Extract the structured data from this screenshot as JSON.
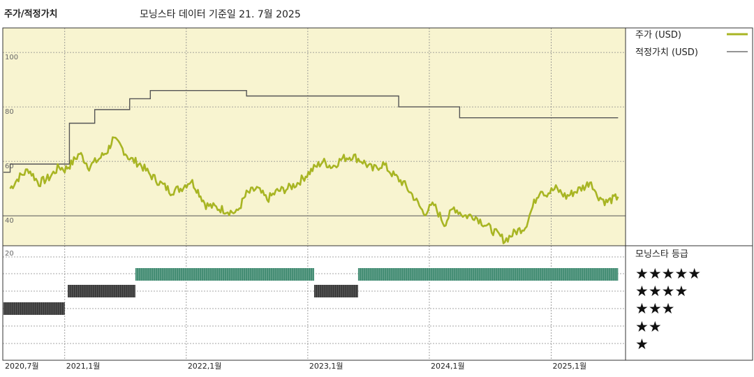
{
  "header": {
    "title": "주가/적정가치",
    "subtitle": "모닝스타 데이터 기준일 21. 7월 2025"
  },
  "legend": {
    "price_label": "주가 (USD)",
    "fair_label": "적정가치 (USD)",
    "rating_title": "모닝스타 등급",
    "stars": [
      "★★★★★",
      "★★★★",
      "★★★",
      "★★",
      "★"
    ]
  },
  "colors": {
    "price": "#a8b523",
    "fair": "#555555",
    "panel_bg": "#f8f4d0",
    "rating_green": "#3f8a70",
    "rating_dark": "#333333"
  },
  "chart_data": [
    {
      "type": "line",
      "title": "주가/적정가치",
      "y_ticks": [
        40,
        60,
        80,
        100
      ],
      "ylim": [
        29,
        109
      ],
      "x_ticks": [
        "2020,7월",
        "2021,1월",
        "2022,1월",
        "2023,1월",
        "2024,1월",
        "2025,1월"
      ],
      "series": [
        {
          "name": "주가 (USD)",
          "points": [
            [
              "2020-07-21",
              50
            ],
            [
              "2020-08-15",
              54
            ],
            [
              "2020-09-15",
              57
            ],
            [
              "2020-10-15",
              52
            ],
            [
              "2020-11-15",
              54
            ],
            [
              "2020-12-15",
              58
            ],
            [
              "2021-01-01",
              57
            ],
            [
              "2021-01-20",
              59
            ],
            [
              "2021-02-15",
              63
            ],
            [
              "2021-03-15",
              58
            ],
            [
              "2021-04-15",
              61
            ],
            [
              "2021-05-10",
              64
            ],
            [
              "2021-05-25",
              68
            ],
            [
              "2021-06-15",
              66
            ],
            [
              "2021-07-15",
              61
            ],
            [
              "2021-08-15",
              59
            ],
            [
              "2021-09-15",
              55
            ],
            [
              "2021-10-15",
              52
            ],
            [
              "2021-11-15",
              49
            ],
            [
              "2021-12-15",
              50
            ],
            [
              "2022-01-15",
              53
            ],
            [
              "2022-02-01",
              50
            ],
            [
              "2022-03-01",
              44
            ],
            [
              "2022-04-01",
              43
            ],
            [
              "2022-05-01",
              42
            ],
            [
              "2022-06-01",
              41
            ],
            [
              "2022-07-01",
              48
            ],
            [
              "2022-08-01",
              50
            ],
            [
              "2022-09-01",
              46
            ],
            [
              "2022-10-01",
              49
            ],
            [
              "2022-11-01",
              50
            ],
            [
              "2022-12-01",
              52
            ],
            [
              "2023-01-15",
              57
            ],
            [
              "2023-02-15",
              60
            ],
            [
              "2023-03-15",
              58
            ],
            [
              "2023-04-15",
              61
            ],
            [
              "2023-05-15",
              62
            ],
            [
              "2023-06-15",
              60
            ],
            [
              "2023-07-15",
              57
            ],
            [
              "2023-08-15",
              59
            ],
            [
              "2023-09-15",
              55
            ],
            [
              "2023-10-15",
              52
            ],
            [
              "2023-11-15",
              47
            ],
            [
              "2023-12-15",
              41
            ],
            [
              "2024-01-15",
              44
            ],
            [
              "2024-02-15",
              37
            ],
            [
              "2024-03-15",
              43
            ],
            [
              "2024-04-15",
              40
            ],
            [
              "2024-05-15",
              40
            ],
            [
              "2024-06-15",
              37
            ],
            [
              "2024-07-15",
              34
            ],
            [
              "2024-08-15",
              31
            ],
            [
              "2024-09-15",
              34
            ],
            [
              "2024-10-15",
              36
            ],
            [
              "2024-11-15",
              46
            ],
            [
              "2024-12-01",
              50
            ],
            [
              "2024-12-15",
              48
            ],
            [
              "2025-01-15",
              50
            ],
            [
              "2025-02-15",
              47
            ],
            [
              "2025-03-15",
              49
            ],
            [
              "2025-04-15",
              51
            ],
            [
              "2025-05-01",
              53
            ],
            [
              "2025-05-15",
              48
            ],
            [
              "2025-06-15",
              45
            ],
            [
              "2025-07-21",
              47
            ]
          ]
        },
        {
          "name": "적정가치 (USD)",
          "step_points": [
            [
              "2020-07-01",
              56
            ],
            [
              "2020-07-21",
              59
            ],
            [
              "2021-01-15",
              74
            ],
            [
              "2021-04-01",
              79
            ],
            [
              "2021-07-15",
              83
            ],
            [
              "2021-09-15",
              86
            ],
            [
              "2022-07-01",
              84
            ],
            [
              "2023-10-01",
              80
            ],
            [
              "2024-04-01",
              76
            ],
            [
              "2025-07-21",
              76
            ]
          ]
        }
      ]
    },
    {
      "type": "heatmap",
      "title": "모닝스타 등급",
      "ratings": [
        {
          "start": "2020-07-01",
          "end": "2021-01-01",
          "stars": 3
        },
        {
          "start": "2021-01-10",
          "end": "2021-08-01",
          "stars": 4
        },
        {
          "start": "2021-08-01",
          "end": "2023-01-20",
          "stars": 5
        },
        {
          "start": "2023-01-20",
          "end": "2023-06-01",
          "stars": 4
        },
        {
          "start": "2023-06-01",
          "end": "2025-07-21",
          "stars": 5
        }
      ]
    }
  ]
}
